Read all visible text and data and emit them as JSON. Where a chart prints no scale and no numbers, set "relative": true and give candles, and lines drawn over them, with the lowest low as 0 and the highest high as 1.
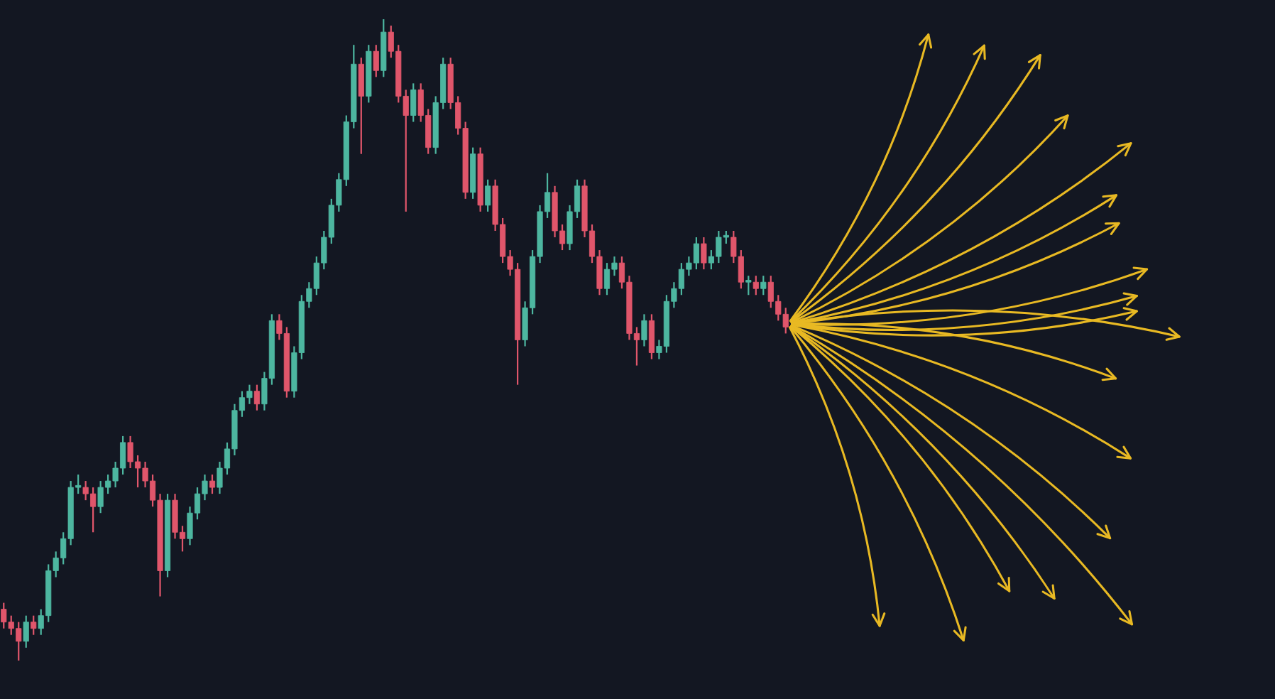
{
  "chart_data": {
    "type": "candlestick",
    "relative": true,
    "categories": [
      null,
      null,
      null,
      null,
      null,
      null,
      null,
      null,
      null,
      null,
      null,
      null,
      null,
      null,
      null,
      null,
      null,
      null,
      null,
      null,
      null,
      null,
      null,
      null,
      null,
      null,
      null,
      null,
      null,
      null,
      null,
      null,
      null,
      null,
      null,
      null,
      null,
      null,
      null,
      null,
      null,
      null,
      null,
      null,
      null,
      null,
      null,
      null,
      null,
      null,
      null,
      null,
      null,
      null,
      null,
      null,
      null,
      null,
      null,
      null,
      null,
      null,
      null,
      null,
      null,
      null,
      null,
      null,
      null,
      null,
      null,
      null,
      null,
      null,
      null,
      null,
      null,
      null,
      null,
      null,
      null,
      null,
      null,
      null,
      null,
      null,
      null,
      null,
      null,
      null,
      null,
      null,
      null,
      null,
      null,
      null,
      null,
      null,
      null,
      null,
      null,
      null,
      null,
      null,
      null,
      null
    ],
    "ohlc": [
      [
        0.08,
        0.09,
        0.05,
        0.06
      ],
      [
        0.06,
        0.07,
        0.04,
        0.05
      ],
      [
        0.05,
        0.06,
        0.0,
        0.03
      ],
      [
        0.03,
        0.07,
        0.02,
        0.06
      ],
      [
        0.06,
        0.07,
        0.04,
        0.05
      ],
      [
        0.05,
        0.08,
        0.04,
        0.07
      ],
      [
        0.07,
        0.15,
        0.06,
        0.14
      ],
      [
        0.14,
        0.17,
        0.13,
        0.16
      ],
      [
        0.16,
        0.2,
        0.15,
        0.19
      ],
      [
        0.19,
        0.28,
        0.18,
        0.27
      ],
      [
        0.27,
        0.29,
        0.26,
        0.27
      ],
      [
        0.27,
        0.28,
        0.25,
        0.26
      ],
      [
        0.26,
        0.27,
        0.2,
        0.24
      ],
      [
        0.24,
        0.28,
        0.23,
        0.27
      ],
      [
        0.27,
        0.29,
        0.26,
        0.28
      ],
      [
        0.28,
        0.31,
        0.27,
        0.3
      ],
      [
        0.3,
        0.35,
        0.29,
        0.34
      ],
      [
        0.34,
        0.35,
        0.3,
        0.31
      ],
      [
        0.31,
        0.32,
        0.27,
        0.3
      ],
      [
        0.3,
        0.31,
        0.27,
        0.28
      ],
      [
        0.28,
        0.29,
        0.24,
        0.25
      ],
      [
        0.25,
        0.26,
        0.1,
        0.14
      ],
      [
        0.14,
        0.26,
        0.13,
        0.25
      ],
      [
        0.25,
        0.26,
        0.19,
        0.2
      ],
      [
        0.2,
        0.21,
        0.17,
        0.19
      ],
      [
        0.19,
        0.24,
        0.18,
        0.23
      ],
      [
        0.23,
        0.27,
        0.22,
        0.26
      ],
      [
        0.26,
        0.29,
        0.25,
        0.28
      ],
      [
        0.28,
        0.29,
        0.26,
        0.27
      ],
      [
        0.27,
        0.31,
        0.26,
        0.3
      ],
      [
        0.3,
        0.34,
        0.29,
        0.33
      ],
      [
        0.33,
        0.4,
        0.32,
        0.39
      ],
      [
        0.39,
        0.42,
        0.38,
        0.41
      ],
      [
        0.41,
        0.43,
        0.4,
        0.42
      ],
      [
        0.42,
        0.43,
        0.39,
        0.4
      ],
      [
        0.4,
        0.45,
        0.39,
        0.44
      ],
      [
        0.44,
        0.54,
        0.43,
        0.53
      ],
      [
        0.53,
        0.54,
        0.5,
        0.51
      ],
      [
        0.51,
        0.52,
        0.41,
        0.42
      ],
      [
        0.42,
        0.49,
        0.41,
        0.48
      ],
      [
        0.48,
        0.57,
        0.47,
        0.56
      ],
      [
        0.56,
        0.59,
        0.55,
        0.58
      ],
      [
        0.58,
        0.63,
        0.57,
        0.62
      ],
      [
        0.62,
        0.67,
        0.61,
        0.66
      ],
      [
        0.66,
        0.72,
        0.65,
        0.71
      ],
      [
        0.71,
        0.76,
        0.7,
        0.75
      ],
      [
        0.75,
        0.85,
        0.74,
        0.84
      ],
      [
        0.84,
        0.96,
        0.83,
        0.93
      ],
      [
        0.93,
        0.94,
        0.79,
        0.88
      ],
      [
        0.88,
        0.96,
        0.87,
        0.95
      ],
      [
        0.95,
        0.96,
        0.91,
        0.92
      ],
      [
        0.92,
        1.0,
        0.91,
        0.98
      ],
      [
        0.98,
        0.99,
        0.94,
        0.95
      ],
      [
        0.95,
        0.96,
        0.87,
        0.88
      ],
      [
        0.88,
        0.89,
        0.7,
        0.85
      ],
      [
        0.85,
        0.9,
        0.84,
        0.89
      ],
      [
        0.89,
        0.9,
        0.84,
        0.85
      ],
      [
        0.85,
        0.86,
        0.79,
        0.8
      ],
      [
        0.8,
        0.88,
        0.79,
        0.87
      ],
      [
        0.87,
        0.94,
        0.86,
        0.93
      ],
      [
        0.93,
        0.94,
        0.86,
        0.87
      ],
      [
        0.87,
        0.88,
        0.82,
        0.83
      ],
      [
        0.83,
        0.84,
        0.72,
        0.73
      ],
      [
        0.73,
        0.8,
        0.72,
        0.79
      ],
      [
        0.79,
        0.8,
        0.7,
        0.71
      ],
      [
        0.71,
        0.75,
        0.7,
        0.74
      ],
      [
        0.74,
        0.75,
        0.67,
        0.68
      ],
      [
        0.68,
        0.69,
        0.62,
        0.63
      ],
      [
        0.63,
        0.64,
        0.6,
        0.61
      ],
      [
        0.61,
        0.62,
        0.43,
        0.5
      ],
      [
        0.5,
        0.56,
        0.49,
        0.55
      ],
      [
        0.55,
        0.64,
        0.54,
        0.63
      ],
      [
        0.63,
        0.71,
        0.62,
        0.7
      ],
      [
        0.7,
        0.76,
        0.69,
        0.73
      ],
      [
        0.73,
        0.74,
        0.66,
        0.67
      ],
      [
        0.67,
        0.68,
        0.64,
        0.65
      ],
      [
        0.65,
        0.71,
        0.64,
        0.7
      ],
      [
        0.7,
        0.75,
        0.69,
        0.74
      ],
      [
        0.74,
        0.75,
        0.66,
        0.67
      ],
      [
        0.67,
        0.68,
        0.62,
        0.63
      ],
      [
        0.63,
        0.64,
        0.57,
        0.58
      ],
      [
        0.58,
        0.62,
        0.57,
        0.61
      ],
      [
        0.61,
        0.63,
        0.6,
        0.62
      ],
      [
        0.62,
        0.63,
        0.58,
        0.59
      ],
      [
        0.59,
        0.6,
        0.5,
        0.51
      ],
      [
        0.51,
        0.52,
        0.46,
        0.5
      ],
      [
        0.5,
        0.54,
        0.49,
        0.53
      ],
      [
        0.53,
        0.54,
        0.47,
        0.48
      ],
      [
        0.48,
        0.5,
        0.47,
        0.49
      ],
      [
        0.49,
        0.57,
        0.48,
        0.56
      ],
      [
        0.56,
        0.59,
        0.55,
        0.58
      ],
      [
        0.58,
        0.62,
        0.57,
        0.61
      ],
      [
        0.61,
        0.63,
        0.6,
        0.62
      ],
      [
        0.62,
        0.66,
        0.61,
        0.65
      ],
      [
        0.65,
        0.66,
        0.61,
        0.62
      ],
      [
        0.62,
        0.64,
        0.61,
        0.63
      ],
      [
        0.63,
        0.67,
        0.62,
        0.66
      ],
      [
        0.66,
        0.67,
        0.65,
        0.66
      ],
      [
        0.66,
        0.67,
        0.62,
        0.63
      ],
      [
        0.63,
        0.64,
        0.58,
        0.59
      ],
      [
        0.59,
        0.6,
        0.57,
        0.59
      ],
      [
        0.59,
        0.6,
        0.57,
        0.58
      ],
      [
        0.58,
        0.6,
        0.57,
        0.59
      ],
      [
        0.59,
        0.6,
        0.55,
        0.56
      ],
      [
        0.56,
        0.57,
        0.53,
        0.54
      ],
      [
        0.54,
        0.55,
        0.51,
        0.52
      ]
    ]
  }
}
